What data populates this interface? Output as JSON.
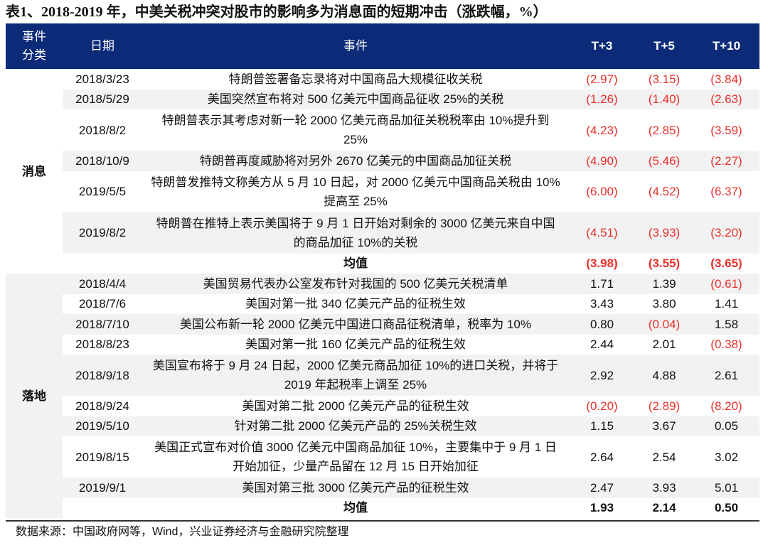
{
  "title": "表1、2018-2019 年，中美关税冲突对股市的影响多为消息面的短期冲击（涨跌幅，%）",
  "headers": [
    "事件分类",
    "日期",
    "事件",
    "T+3",
    "T+5",
    "T+10"
  ],
  "groups": [
    {
      "category": "消息",
      "rows": [
        {
          "date": "2018/3/23",
          "event": "特朗普签署备忘录将对中国商品大规模征收关税",
          "t3": "(2.97)",
          "t5": "(3.15)",
          "t10": "(3.84)"
        },
        {
          "date": "2018/5/29",
          "event": "美国突然宣布将对 500 亿美元中国商品征收 25%的关税",
          "t3": "(1.26)",
          "t5": "(1.40)",
          "t10": "(2.63)"
        },
        {
          "date": "2018/8/2",
          "event": "特朗普表示其考虑对新一轮 2000 亿美元商品加征关税税率由 10%提升到 25%",
          "t3": "(4.23)",
          "t5": "(2.85)",
          "t10": "(3.59)"
        },
        {
          "date": "2018/10/9",
          "event": "特朗普再度威胁将对另外 2670 亿美元的中国商品加征关税",
          "t3": "(4.90)",
          "t5": "(5.46)",
          "t10": "(2.27)"
        },
        {
          "date": "2019/5/5",
          "event": "特朗普发推特文称美方从 5 月 10 日起，对 2000 亿美元中国商品关税由 10%提高至 25%",
          "t3": "(6.00)",
          "t5": "(4.52)",
          "t10": "(6.37)"
        },
        {
          "date": "2019/8/2",
          "event": "特朗普在推特上表示美国将于 9 月 1 日开始对剩余的 3000 亿美元来自中国的商品加征 10%的关税",
          "t3": "(4.51)",
          "t5": "(3.93)",
          "t10": "(3.20)"
        }
      ],
      "mean": {
        "label": "均值",
        "t3": "(3.98)",
        "t5": "(3.55)",
        "t10": "(3.65)"
      }
    },
    {
      "category": "落地",
      "rows": [
        {
          "date": "2018/4/4",
          "event": "美国贸易代表办公室发布针对我国的 500 亿美元关税清单",
          "t3": "1.71",
          "t5": "1.39",
          "t10": "(0.61)"
        },
        {
          "date": "2018/7/6",
          "event": "美国对第一批 340 亿美元产品的征税生效",
          "t3": "3.43",
          "t5": "3.80",
          "t10": "1.41"
        },
        {
          "date": "2018/7/10",
          "event": "美国公布新一轮 2000 亿美元中国进口商品征税清单，税率为 10%",
          "t3": "0.80",
          "t5": "(0.04)",
          "t10": "1.58"
        },
        {
          "date": "2018/8/23",
          "event": "美国对第一批 160 亿美元产品的征税生效",
          "t3": "2.44",
          "t5": "2.01",
          "t10": "(0.38)"
        },
        {
          "date": "2018/9/18",
          "event": "美国宣布将于 9 月 24 日起，2000 亿美元商品加征 10%的进口关税，并将于 2019 年起税率上调至 25%",
          "t3": "2.92",
          "t5": "4.88",
          "t10": "2.61"
        },
        {
          "date": "2018/9/24",
          "event": "美国对第二批 2000 亿美元产品的征税生效",
          "t3": "(0.20)",
          "t5": "(2.89)",
          "t10": "(8.20)"
        },
        {
          "date": "2019/5/10",
          "event": "针对第二批 2000 亿美元产品的 25%关税生效",
          "t3": "1.15",
          "t5": "3.67",
          "t10": "0.05"
        },
        {
          "date": "2019/8/15",
          "event": "美国正式宣布对价值 3000 亿美元中国商品加征 10%，主要集中于 9 月 1 日开始加征，少量产品留在 12 月 15 日开始加征",
          "t3": "2.64",
          "t5": "2.54",
          "t10": "3.02"
        },
        {
          "date": "2019/9/1",
          "event": "美国对第三批 3000 亿美元产品的征税生效",
          "t3": "2.47",
          "t5": "3.93",
          "t10": "5.01"
        }
      ],
      "mean": {
        "label": "均值",
        "t3": "1.93",
        "t5": "2.14",
        "t10": "0.50"
      }
    }
  ],
  "source": "数据来源：中国政府网等，Wind，兴业证券经济与金融研究院整理",
  "colors": {
    "header_bg": "#0b2a78",
    "negative": "#e8302a",
    "stripe": "#f2f2f2"
  }
}
